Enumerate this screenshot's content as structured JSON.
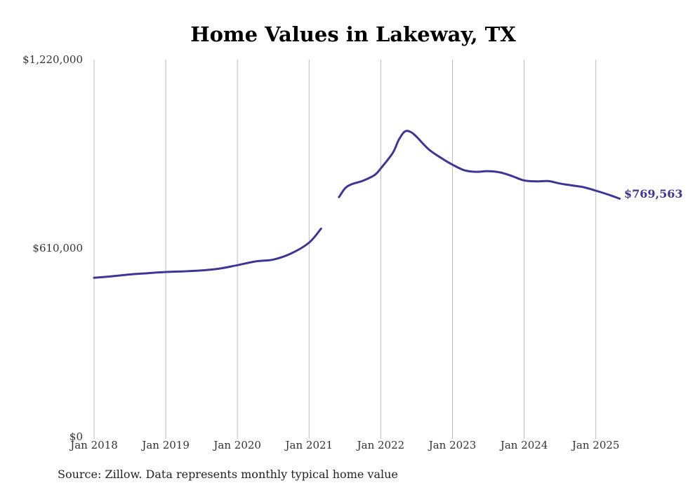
{
  "chart_data": {
    "type": "line",
    "title": "Home Values in Lakeway, TX",
    "xlabel": "",
    "ylabel": "",
    "x_tick_labels": [
      "Jan 2018",
      "Jan 2019",
      "Jan 2020",
      "Jan 2021",
      "Jan 2022",
      "Jan 2023",
      "Jan 2024",
      "Jan 2025"
    ],
    "y_tick_labels": [
      "$1,220,000",
      "$610,000",
      "$0"
    ],
    "ylim": [
      0,
      1220000
    ],
    "grid": "vertical lines at each January",
    "line_color": "#3f3594",
    "series": [
      {
        "segments": [
          [
            {
              "x": "2018-01",
              "y": 514000
            },
            {
              "x": "2018-04",
              "y": 519000
            },
            {
              "x": "2018-07",
              "y": 525000
            },
            {
              "x": "2018-10",
              "y": 529000
            },
            {
              "x": "2019-01",
              "y": 533000
            },
            {
              "x": "2019-04",
              "y": 535000
            },
            {
              "x": "2019-07",
              "y": 538000
            },
            {
              "x": "2019-10",
              "y": 544000
            },
            {
              "x": "2020-01",
              "y": 555000
            },
            {
              "x": "2020-04",
              "y": 567000
            },
            {
              "x": "2020-07",
              "y": 573000
            },
            {
              "x": "2020-10",
              "y": 593000
            },
            {
              "x": "2021-01",
              "y": 628000
            },
            {
              "x": "2021-03",
              "y": 673000
            }
          ],
          [
            {
              "x": "2021-06",
              "y": 775000
            },
            {
              "x": "2021-07",
              "y": 803000
            },
            {
              "x": "2021-08",
              "y": 816000
            },
            {
              "x": "2021-10",
              "y": 828000
            },
            {
              "x": "2021-12",
              "y": 847000
            },
            {
              "x": "2022-01",
              "y": 868000
            },
            {
              "x": "2022-03",
              "y": 918000
            },
            {
              "x": "2022-04",
              "y": 960000
            },
            {
              "x": "2022-05",
              "y": 987000
            },
            {
              "x": "2022-06",
              "y": 986000
            },
            {
              "x": "2022-07",
              "y": 970000
            },
            {
              "x": "2022-09",
              "y": 930000
            },
            {
              "x": "2022-11",
              "y": 903000
            },
            {
              "x": "2023-01",
              "y": 880000
            },
            {
              "x": "2023-03",
              "y": 862000
            },
            {
              "x": "2023-05",
              "y": 857000
            },
            {
              "x": "2023-07",
              "y": 859000
            },
            {
              "x": "2023-09",
              "y": 855000
            },
            {
              "x": "2023-11",
              "y": 843000
            },
            {
              "x": "2024-01",
              "y": 829000
            },
            {
              "x": "2024-03",
              "y": 826000
            },
            {
              "x": "2024-05",
              "y": 827000
            },
            {
              "x": "2024-07",
              "y": 819000
            },
            {
              "x": "2024-09",
              "y": 813000
            },
            {
              "x": "2024-11",
              "y": 807000
            },
            {
              "x": "2025-01",
              "y": 796000
            },
            {
              "x": "2025-03",
              "y": 784000
            },
            {
              "x": "2025-05",
              "y": 770000
            }
          ]
        ],
        "end_label": "$769,563"
      }
    ]
  },
  "source_note": "Source: Zillow. Data represents monthly typical home value"
}
